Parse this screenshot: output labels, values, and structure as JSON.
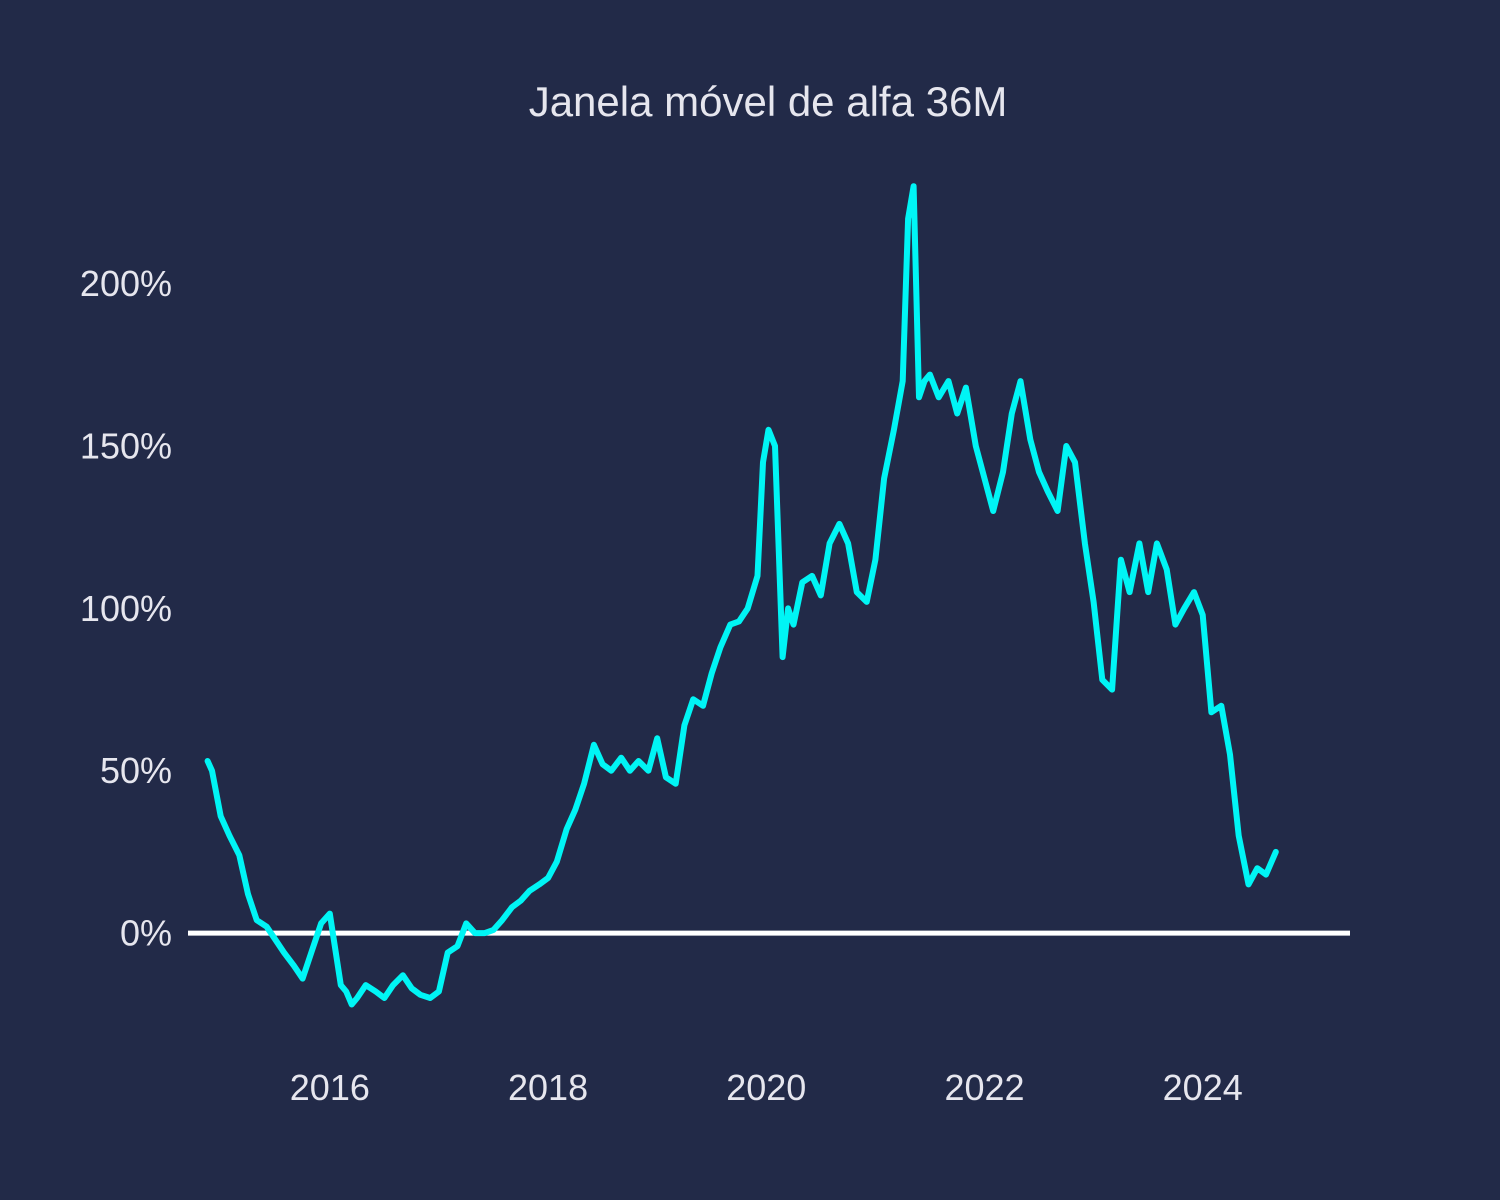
{
  "chart_data": {
    "type": "line",
    "title": "Janela móvel de alfa 36M",
    "xlabel": "",
    "ylabel": "",
    "x_ticks": [
      "2016",
      "2018",
      "2020",
      "2022",
      "2024"
    ],
    "y_ticks": [
      "0%",
      "50%",
      "100%",
      "150%",
      "200%"
    ],
    "xlim": [
      2014.7,
      2025.35
    ],
    "ylim": [
      -0.36,
      2.35
    ],
    "grid": false,
    "reference_line": {
      "y": 0,
      "color": "#ffffff"
    },
    "colors": {
      "background": "#222a48",
      "line": "#00f5f5",
      "text": "#e6e6ee"
    },
    "series": [
      {
        "x": [
          2014.88,
          2014.92,
          2015.0,
          2015.08,
          2015.17,
          2015.25,
          2015.33,
          2015.42,
          2015.5,
          2015.58,
          2015.67,
          2015.75,
          2015.83,
          2015.92,
          2016.0,
          2016.05,
          2016.1,
          2016.15,
          2016.2,
          2016.25,
          2016.33,
          2016.42,
          2016.5,
          2016.58,
          2016.67,
          2016.75,
          2016.83,
          2016.92,
          2017.0,
          2017.08,
          2017.17,
          2017.25,
          2017.33,
          2017.42,
          2017.5,
          2017.58,
          2017.67,
          2017.75,
          2017.83,
          2017.92,
          2018.0,
          2018.08,
          2018.17,
          2018.25,
          2018.33,
          2018.42,
          2018.5,
          2018.58,
          2018.67,
          2018.75,
          2018.83,
          2018.92,
          2019.0,
          2019.08,
          2019.17,
          2019.25,
          2019.33,
          2019.42,
          2019.5,
          2019.58,
          2019.67,
          2019.75,
          2019.83,
          2019.92,
          2019.97,
          2020.02,
          2020.08,
          2020.15,
          2020.2,
          2020.25,
          2020.33,
          2020.42,
          2020.5,
          2020.58,
          2020.67,
          2020.75,
          2020.83,
          2020.92,
          2021.0,
          2021.08,
          2021.17,
          2021.25,
          2021.3,
          2021.35,
          2021.4,
          2021.45,
          2021.5,
          2021.58,
          2021.67,
          2021.75,
          2021.83,
          2021.92,
          2022.0,
          2022.08,
          2022.17,
          2022.25,
          2022.33,
          2022.42,
          2022.5,
          2022.58,
          2022.67,
          2022.75,
          2022.83,
          2022.92,
          2023.0,
          2023.08,
          2023.17,
          2023.25,
          2023.33,
          2023.42,
          2023.5,
          2023.58,
          2023.67,
          2023.75,
          2023.83,
          2023.92,
          2024.0,
          2024.08,
          2024.17,
          2024.25,
          2024.33,
          2024.42,
          2024.5,
          2024.58,
          2024.67
        ],
        "y": [
          0.53,
          0.5,
          0.36,
          0.3,
          0.24,
          0.12,
          0.04,
          0.02,
          -0.02,
          -0.06,
          -0.1,
          -0.14,
          -0.06,
          0.03,
          0.06,
          -0.05,
          -0.16,
          -0.18,
          -0.22,
          -0.2,
          -0.16,
          -0.18,
          -0.2,
          -0.16,
          -0.13,
          -0.17,
          -0.19,
          -0.2,
          -0.18,
          -0.06,
          -0.04,
          0.03,
          0.0,
          0.0,
          0.01,
          0.04,
          0.08,
          0.1,
          0.13,
          0.15,
          0.17,
          0.22,
          0.32,
          0.38,
          0.46,
          0.58,
          0.52,
          0.5,
          0.54,
          0.5,
          0.53,
          0.5,
          0.6,
          0.48,
          0.46,
          0.64,
          0.72,
          0.7,
          0.8,
          0.88,
          0.95,
          0.96,
          1.0,
          1.1,
          1.45,
          1.55,
          1.5,
          0.85,
          1.0,
          0.95,
          1.08,
          1.1,
          1.04,
          1.2,
          1.26,
          1.2,
          1.05,
          1.02,
          1.15,
          1.4,
          1.55,
          1.7,
          2.2,
          2.3,
          1.65,
          1.7,
          1.72,
          1.65,
          1.7,
          1.6,
          1.68,
          1.5,
          1.4,
          1.3,
          1.42,
          1.6,
          1.7,
          1.52,
          1.42,
          1.36,
          1.3,
          1.5,
          1.45,
          1.2,
          1.02,
          0.78,
          0.75,
          1.15,
          1.05,
          1.2,
          1.05,
          1.2,
          1.12,
          0.95,
          1.0,
          1.05,
          0.98,
          0.68,
          0.7,
          0.55,
          0.3,
          0.15,
          0.2,
          0.18,
          0.25
        ]
      }
    ]
  }
}
